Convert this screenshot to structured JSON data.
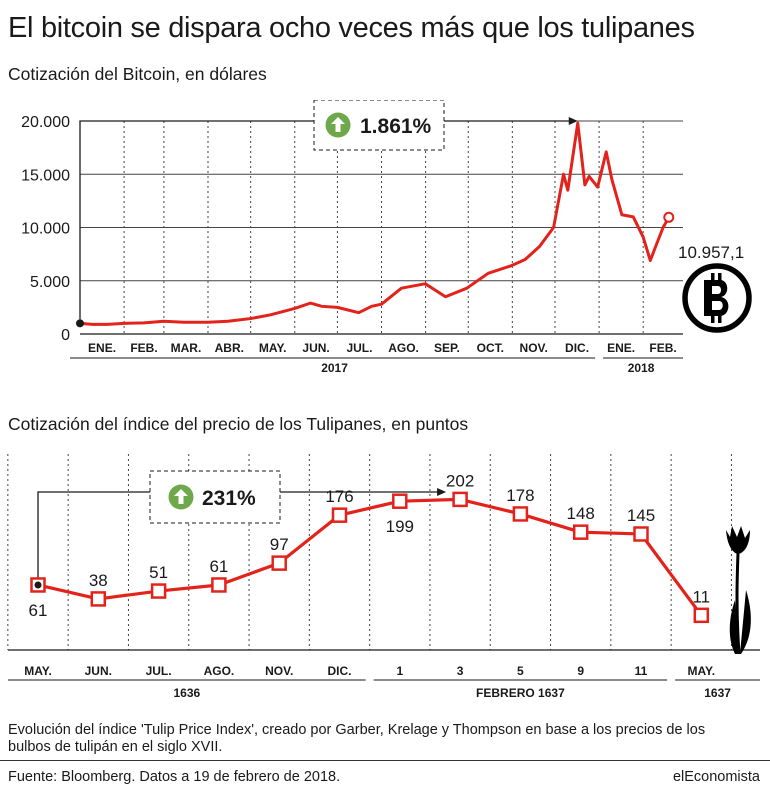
{
  "title": "El bitcoin se dispara ocho veces más que los tulipanes",
  "chart_data": [
    {
      "type": "line",
      "title": "Cotización del Bitcoin, en dólares",
      "x_months": [
        "ENE.",
        "FEB.",
        "MAR.",
        "ABR.",
        "MAY.",
        "JUN.",
        "JUL.",
        "AGO.",
        "SEP.",
        "OCT.",
        "NOV.",
        "DIC.",
        "ENE.",
        "FEB."
      ],
      "x_years": [
        "2017",
        "2018"
      ],
      "y_ticks": [
        "20.000",
        "15.000",
        "10.000",
        "5.000",
        "0"
      ],
      "ylim": [
        0,
        20000
      ],
      "grid": true,
      "series": [
        {
          "x": [
            "2017-01-01",
            "2017-01-10",
            "2017-01-20",
            "2017-02-01",
            "2017-02-15",
            "2017-03-01",
            "2017-03-15",
            "2017-04-01",
            "2017-04-15",
            "2017-05-01",
            "2017-05-15",
            "2017-06-01",
            "2017-06-12",
            "2017-06-20",
            "2017-07-01",
            "2017-07-16",
            "2017-07-25",
            "2017-08-01",
            "2017-08-15",
            "2017-08-31",
            "2017-09-01",
            "2017-09-15",
            "2017-09-30",
            "2017-10-15",
            "2017-10-31",
            "2017-11-10",
            "2017-11-20",
            "2017-11-30",
            "2017-12-07",
            "2017-12-10",
            "2017-12-17",
            "2017-12-22",
            "2017-12-25",
            "2017-12-31",
            "2018-01-06",
            "2018-01-10",
            "2018-01-17",
            "2018-01-25",
            "2018-02-01",
            "2018-02-06",
            "2018-02-10",
            "2018-02-15",
            "2018-02-19"
          ],
          "y": [
            1000,
            900,
            900,
            1000,
            1050,
            1200,
            1100,
            1100,
            1200,
            1450,
            1800,
            2400,
            2900,
            2600,
            2500,
            2000,
            2600,
            2800,
            4300,
            4700,
            4700,
            3500,
            4300,
            5700,
            6400,
            7000,
            8200,
            10000,
            15000,
            13500,
            19800,
            14000,
            14800,
            13800,
            17100,
            14500,
            11200,
            11000,
            9100,
            6900,
            8300,
            10000,
            10957.1
          ]
        }
      ],
      "annotation_change": "1.861%",
      "end_label": "10.957,1",
      "icon": "bitcoin-icon"
    },
    {
      "type": "line",
      "title": "Cotización del índice del precio de los Tulipanes, en puntos",
      "categories": [
        "MAY.",
        "JUN.",
        "JUL.",
        "AGO.",
        "NOV.",
        "DIC.",
        "1",
        "3",
        "5",
        "9",
        "11",
        "MAY."
      ],
      "group_labels": [
        "1636",
        "FEBRERO 1637",
        "1637"
      ],
      "series": [
        {
          "values": [
            61,
            38,
            51,
            61,
            97,
            176,
            199,
            202,
            178,
            148,
            145,
            11
          ]
        }
      ],
      "annotation_change": "231%",
      "icon": "tulip-icon"
    }
  ],
  "caption": "Evolución del índice 'Tulip Price Index', creado por Garber, Krelage y Thompson en base a los precios de los bulbos de tulipán en el siglo XVII.",
  "source": "Fuente: Bloomberg. Datos a 19 de febrero de 2018.",
  "brand": "elEconomista",
  "colors": {
    "line": "#e3231b",
    "text": "#1a1a1a",
    "arrow_green": "#6fa84a",
    "grid": "#444444",
    "background": "#ffffff"
  }
}
